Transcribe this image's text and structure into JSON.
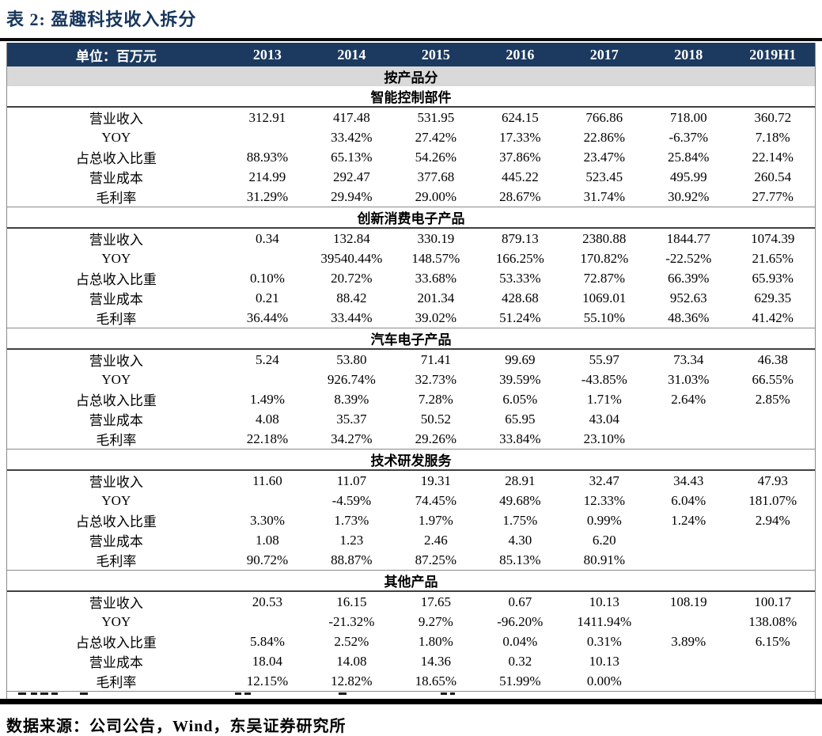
{
  "title": "表 2:  盈趣科技收入拆分",
  "source": "数据来源：公司公告，Wind，东吴证券研究所",
  "colors": {
    "header_bg": "#1C3A60",
    "group_row_bg": "#D9D9D9",
    "title_text": "#17365D"
  },
  "table": {
    "unit_label": "单位：百万元",
    "years": [
      "2013",
      "2014",
      "2015",
      "2016",
      "2017",
      "2018",
      "2019H1"
    ],
    "group_header": "按产品分",
    "sections": [
      {
        "name": "智能控制部件",
        "rows": [
          {
            "label": "营业收入",
            "values": [
              "312.91",
              "417.48",
              "531.95",
              "624.15",
              "766.86",
              "718.00",
              "360.72"
            ]
          },
          {
            "label": "YOY",
            "values": [
              "",
              "33.42%",
              "27.42%",
              "17.33%",
              "22.86%",
              "-6.37%",
              "7.18%"
            ]
          },
          {
            "label": "占总收入比重",
            "values": [
              "88.93%",
              "65.13%",
              "54.26%",
              "37.86%",
              "23.47%",
              "25.84%",
              "22.14%"
            ]
          },
          {
            "label": "营业成本",
            "values": [
              "214.99",
              "292.47",
              "377.68",
              "445.22",
              "523.45",
              "495.99",
              "260.54"
            ]
          },
          {
            "label": "毛利率",
            "values": [
              "31.29%",
              "29.94%",
              "29.00%",
              "28.67%",
              "31.74%",
              "30.92%",
              "27.77%"
            ]
          }
        ]
      },
      {
        "name": "创新消费电子产品",
        "rows": [
          {
            "label": "营业收入",
            "values": [
              "0.34",
              "132.84",
              "330.19",
              "879.13",
              "2380.88",
              "1844.77",
              "1074.39"
            ]
          },
          {
            "label": "YOY",
            "values": [
              "",
              "39540.44%",
              "148.57%",
              "166.25%",
              "170.82%",
              "-22.52%",
              "21.65%"
            ]
          },
          {
            "label": "占总收入比重",
            "values": [
              "0.10%",
              "20.72%",
              "33.68%",
              "53.33%",
              "72.87%",
              "66.39%",
              "65.93%"
            ]
          },
          {
            "label": "营业成本",
            "values": [
              "0.21",
              "88.42",
              "201.34",
              "428.68",
              "1069.01",
              "952.63",
              "629.35"
            ]
          },
          {
            "label": "毛利率",
            "values": [
              "36.44%",
              "33.44%",
              "39.02%",
              "51.24%",
              "55.10%",
              "48.36%",
              "41.42%"
            ]
          }
        ]
      },
      {
        "name": "汽车电子产品",
        "rows": [
          {
            "label": "营业收入",
            "values": [
              "5.24",
              "53.80",
              "71.41",
              "99.69",
              "55.97",
              "73.34",
              "46.38"
            ]
          },
          {
            "label": "YOY",
            "values": [
              "",
              "926.74%",
              "32.73%",
              "39.59%",
              "-43.85%",
              "31.03%",
              "66.55%"
            ]
          },
          {
            "label": "占总收入比重",
            "values": [
              "1.49%",
              "8.39%",
              "7.28%",
              "6.05%",
              "1.71%",
              "2.64%",
              "2.85%"
            ]
          },
          {
            "label": "营业成本",
            "values": [
              "4.08",
              "35.37",
              "50.52",
              "65.95",
              "43.04",
              "",
              ""
            ]
          },
          {
            "label": "毛利率",
            "values": [
              "22.18%",
              "34.27%",
              "29.26%",
              "33.84%",
              "23.10%",
              "",
              ""
            ]
          }
        ]
      },
      {
        "name": "技术研发服务",
        "rows": [
          {
            "label": "营业收入",
            "values": [
              "11.60",
              "11.07",
              "19.31",
              "28.91",
              "32.47",
              "34.43",
              "47.93"
            ]
          },
          {
            "label": "YOY",
            "values": [
              "",
              "-4.59%",
              "74.45%",
              "49.68%",
              "12.33%",
              "6.04%",
              "181.07%"
            ]
          },
          {
            "label": "占总收入比重",
            "values": [
              "3.30%",
              "1.73%",
              "1.97%",
              "1.75%",
              "0.99%",
              "1.24%",
              "2.94%"
            ]
          },
          {
            "label": "营业成本",
            "values": [
              "1.08",
              "1.23",
              "2.46",
              "4.30",
              "6.20",
              "",
              ""
            ]
          },
          {
            "label": "毛利率",
            "values": [
              "90.72%",
              "88.87%",
              "87.25%",
              "85.13%",
              "80.91%",
              "",
              ""
            ]
          }
        ]
      },
      {
        "name": "其他产品",
        "rows": [
          {
            "label": "营业收入",
            "values": [
              "20.53",
              "16.15",
              "17.65",
              "0.67",
              "10.13",
              "108.19",
              "100.17"
            ]
          },
          {
            "label": "YOY",
            "values": [
              "",
              "-21.32%",
              "9.27%",
              "-96.20%",
              "1411.94%",
              "",
              "138.08%"
            ]
          },
          {
            "label": "占总收入比重",
            "values": [
              "5.84%",
              "2.52%",
              "1.80%",
              "0.04%",
              "0.31%",
              "3.89%",
              "6.15%"
            ]
          },
          {
            "label": "营业成本",
            "values": [
              "18.04",
              "14.08",
              "14.36",
              "0.32",
              "10.13",
              "",
              ""
            ]
          },
          {
            "label": "毛利率",
            "values": [
              "12.15%",
              "12.82%",
              "18.65%",
              "51.99%",
              "0.00%",
              "",
              ""
            ]
          }
        ]
      }
    ]
  }
}
